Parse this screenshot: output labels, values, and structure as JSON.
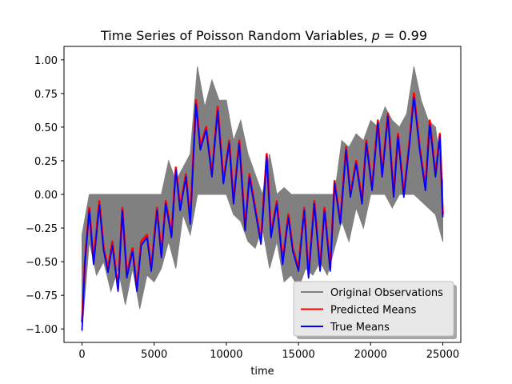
{
  "chart_data": {
    "type": "line",
    "title": "Time Series of Poisson Random Variables, p = 0.99",
    "title_prefix": "Time Series of Poisson Random Variables, ",
    "title_var": "p",
    "title_eq": " = 0.99",
    "xlabel": "time",
    "ylabel": "",
    "xlim": [
      -1250,
      26250
    ],
    "ylim": [
      -1.1,
      1.1
    ],
    "xticks": [
      0,
      5000,
      10000,
      15000,
      20000,
      25000
    ],
    "xtick_labels": [
      "0",
      "5000",
      "10000",
      "15000",
      "20000",
      "25000"
    ],
    "yticks": [
      -1.0,
      -0.75,
      -0.5,
      -0.25,
      0.0,
      0.25,
      0.5,
      0.75,
      1.0
    ],
    "ytick_labels": [
      "−1.00",
      "−0.75",
      "−0.50",
      "−0.25",
      "0.00",
      "0.25",
      "0.50",
      "0.75",
      "1.00"
    ],
    "legend_position": "lower-right",
    "series": [
      {
        "name": "Original Observations",
        "color": "#808080",
        "kind": "band",
        "x": [
          0,
          500,
          1000,
          1500,
          2000,
          2500,
          3000,
          3500,
          4000,
          4500,
          5000,
          5500,
          6000,
          6500,
          7000,
          7500,
          8000,
          8500,
          9000,
          9500,
          10000,
          10500,
          11000,
          11500,
          12000,
          12500,
          13000,
          13500,
          14000,
          14500,
          15000,
          15500,
          16000,
          16500,
          17000,
          17500,
          18000,
          18500,
          19000,
          19500,
          20000,
          20500,
          21000,
          21500,
          22000,
          22500,
          23000,
          23500,
          24000,
          24500,
          25000
        ],
        "upper": [
          -0.3,
          0.0,
          0.0,
          0.0,
          0.0,
          0.0,
          0.0,
          0.0,
          0.0,
          0.0,
          0.0,
          0.0,
          0.25,
          0.1,
          0.2,
          0.3,
          0.95,
          0.65,
          0.85,
          0.7,
          0.7,
          0.4,
          0.55,
          0.3,
          0.15,
          0.0,
          0.3,
          0.0,
          0.05,
          0.0,
          0.0,
          0.0,
          0.0,
          0.0,
          0.0,
          0.0,
          0.4,
          0.35,
          0.45,
          0.4,
          0.55,
          0.5,
          0.65,
          0.55,
          0.5,
          0.6,
          0.95,
          0.7,
          0.55,
          0.5,
          0.1
        ],
        "lower": [
          -1.02,
          -0.35,
          -0.6,
          -0.5,
          -0.72,
          -0.55,
          -0.82,
          -0.55,
          -0.85,
          -0.6,
          -0.65,
          -0.55,
          -0.35,
          -0.55,
          -0.15,
          -0.3,
          0.0,
          0.0,
          0.0,
          0.0,
          0.0,
          -0.15,
          -0.2,
          -0.35,
          -0.4,
          -0.25,
          -0.55,
          -0.35,
          -0.65,
          -0.6,
          -0.7,
          -0.55,
          -0.6,
          -0.5,
          -0.6,
          -0.4,
          -0.2,
          -0.35,
          -0.1,
          -0.25,
          0.0,
          0.0,
          0.0,
          -0.1,
          0.0,
          0.0,
          0.0,
          -0.05,
          -0.1,
          -0.15,
          -0.35
        ]
      },
      {
        "name": "Predicted Means",
        "color": "#ff0000",
        "kind": "line",
        "x": [
          0,
          200,
          500,
          800,
          1200,
          1500,
          1800,
          2100,
          2500,
          2800,
          3100,
          3500,
          3800,
          4100,
          4500,
          4800,
          5200,
          5500,
          5800,
          6200,
          6500,
          6800,
          7200,
          7500,
          7900,
          8200,
          8600,
          9000,
          9400,
          9800,
          10200,
          10500,
          10900,
          11300,
          11600,
          12000,
          12400,
          12800,
          13100,
          13500,
          13900,
          14300,
          14600,
          15000,
          15400,
          15700,
          16100,
          16500,
          16800,
          17200,
          17500,
          17900,
          18300,
          18600,
          19000,
          19400,
          19700,
          20100,
          20500,
          20800,
          21200,
          21600,
          21900,
          22300,
          22700,
          23000,
          23400,
          23800,
          24100,
          24500,
          24800,
          25000
        ],
        "y": [
          -0.95,
          -0.5,
          -0.1,
          -0.5,
          -0.05,
          -0.4,
          -0.55,
          -0.35,
          -0.7,
          -0.1,
          -0.6,
          -0.4,
          -0.7,
          -0.35,
          -0.3,
          -0.55,
          -0.1,
          -0.45,
          -0.05,
          -0.3,
          0.2,
          -0.1,
          0.15,
          -0.2,
          0.7,
          0.35,
          0.5,
          0.15,
          0.65,
          0.1,
          0.4,
          -0.05,
          0.4,
          -0.25,
          0.15,
          -0.1,
          -0.35,
          0.3,
          -0.3,
          -0.05,
          -0.5,
          -0.15,
          -0.4,
          -0.55,
          -0.1,
          -0.6,
          -0.05,
          -0.55,
          -0.1,
          -0.55,
          0.1,
          -0.2,
          0.35,
          0.0,
          0.25,
          -0.05,
          0.4,
          0.05,
          0.55,
          0.15,
          0.6,
          0.0,
          0.45,
          0.0,
          0.4,
          0.75,
          0.35,
          0.05,
          0.55,
          0.15,
          0.45,
          -0.15
        ]
      },
      {
        "name": "True Means",
        "color": "#0000ff",
        "kind": "line",
        "x": [
          0,
          200,
          500,
          800,
          1200,
          1500,
          1800,
          2100,
          2500,
          2800,
          3100,
          3500,
          3800,
          4100,
          4500,
          4800,
          5200,
          5500,
          5800,
          6200,
          6500,
          6800,
          7200,
          7500,
          7900,
          8200,
          8600,
          9000,
          9400,
          9800,
          10200,
          10500,
          10900,
          11300,
          11600,
          12000,
          12400,
          12800,
          13100,
          13500,
          13900,
          14300,
          14600,
          15000,
          15400,
          15700,
          16100,
          16500,
          16800,
          17200,
          17500,
          17900,
          18300,
          18600,
          19000,
          19400,
          19700,
          20100,
          20500,
          20800,
          21200,
          21600,
          21900,
          22300,
          22700,
          23000,
          23400,
          23800,
          24100,
          24500,
          24800,
          25000
        ],
        "y": [
          -1.01,
          -0.5,
          -0.12,
          -0.52,
          -0.08,
          -0.42,
          -0.58,
          -0.38,
          -0.72,
          -0.12,
          -0.62,
          -0.42,
          -0.72,
          -0.38,
          -0.32,
          -0.57,
          -0.12,
          -0.47,
          -0.07,
          -0.32,
          0.18,
          -0.12,
          0.13,
          -0.22,
          0.67,
          0.33,
          0.48,
          0.13,
          0.62,
          0.08,
          0.38,
          -0.07,
          0.38,
          -0.27,
          0.13,
          -0.12,
          -0.37,
          0.28,
          -0.32,
          -0.07,
          -0.52,
          -0.17,
          -0.42,
          -0.57,
          -0.12,
          -0.62,
          -0.07,
          -0.57,
          -0.12,
          -0.57,
          0.08,
          -0.22,
          0.33,
          -0.02,
          0.23,
          -0.07,
          0.38,
          0.03,
          0.53,
          0.13,
          0.58,
          -0.02,
          0.43,
          -0.02,
          0.38,
          0.72,
          0.33,
          0.03,
          0.52,
          0.13,
          0.43,
          -0.17
        ]
      }
    ]
  }
}
